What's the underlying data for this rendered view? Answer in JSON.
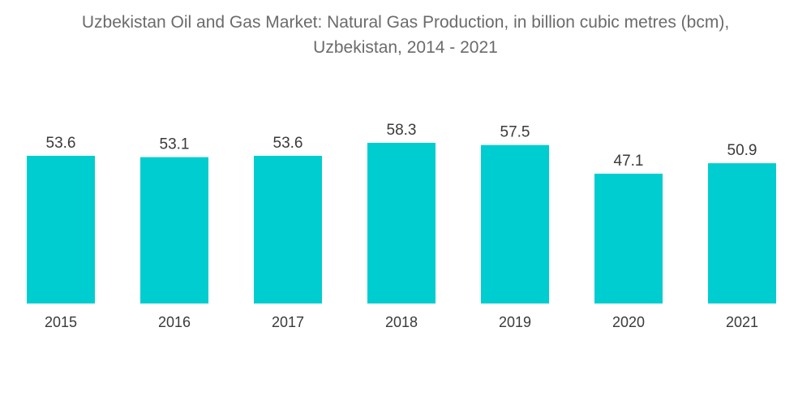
{
  "chart_data": {
    "type": "bar",
    "title": "Uzbekistan Oil and Gas Market: Natural Gas Production, in billion cubic metres (bcm),",
    "subtitle": "Uzbekistan, 2014 - 2021",
    "categories": [
      "2015",
      "2016",
      "2017",
      "2018",
      "2019",
      "2020",
      "2021"
    ],
    "values": [
      53.6,
      53.1,
      53.6,
      58.3,
      57.5,
      47.1,
      50.9
    ],
    "data_labels": [
      "53.6",
      "53.1",
      "53.6",
      "58.3",
      "57.5",
      "47.1",
      "50.9"
    ],
    "xlabel": "",
    "ylabel": "",
    "ylim": [
      0,
      58.3
    ],
    "grid": false,
    "legend": "none",
    "bar_color": "#00cdd0"
  }
}
